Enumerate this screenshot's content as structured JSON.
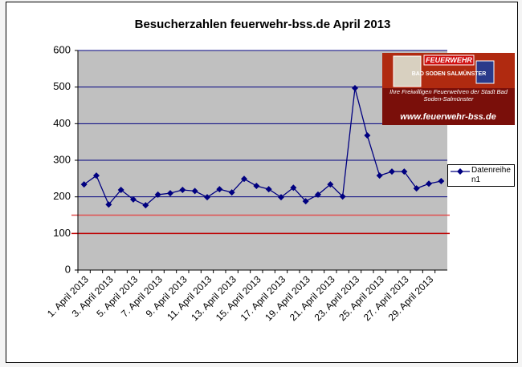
{
  "chart_data": {
    "type": "line",
    "title": "Besucherzahlen feuerwehr-bss.de April 2013",
    "categories": [
      "1. April 2013",
      null,
      "3. April 2013",
      null,
      "5. April 2013",
      null,
      "7. April 2013",
      null,
      "9. April 2013",
      null,
      "11. April 2013",
      null,
      "13. April 2013",
      null,
      "15. April 2013",
      null,
      "17. April 2013",
      null,
      "19. April 2013",
      null,
      "21. April 2013",
      null,
      "23. April 2013",
      null,
      "25. April 2013",
      null,
      "27. April 2013",
      null,
      "29. April 2013",
      null
    ],
    "series": [
      {
        "name": "Datenreihen1",
        "color": "#000080",
        "values": [
          234,
          258,
          179,
          219,
          193,
          177,
          206,
          210,
          219,
          216,
          199,
          221,
          212,
          249,
          230,
          221,
          199,
          225,
          188,
          206,
          234,
          201,
          497,
          368,
          258,
          269,
          269,
          223,
          236,
          243
        ]
      }
    ],
    "ylim": [
      0,
      600
    ],
    "yticks": [
      0,
      100,
      200,
      300,
      400,
      500,
      600
    ],
    "grid": true,
    "grid_color": "#000080",
    "plot_background": "#c0c0c0",
    "legend": "right",
    "reference_lines": [
      {
        "value": 150,
        "color": "#e05050"
      },
      {
        "value": 100,
        "color": "#c00000"
      }
    ],
    "logo": {
      "brand": "FEUERWEHR",
      "town": "BAD SODEN SALMÜNSTER",
      "slogan": "Ihre Freiwilligen Feuerwehren der Stadt Bad Soden-Salmünster",
      "url": "www.feuerwehr-bss.de"
    }
  }
}
